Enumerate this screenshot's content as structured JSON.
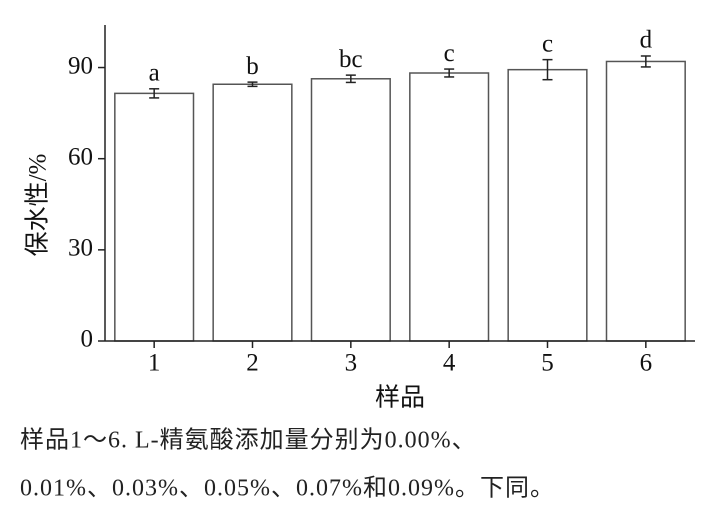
{
  "chart_data": {
    "type": "bar",
    "y_label": "保水性/%",
    "x_label": "样品",
    "categories": [
      "1",
      "2",
      "3",
      "4",
      "5",
      "6"
    ],
    "values": [
      81.5,
      84.5,
      86.3,
      88.2,
      89.3,
      92.0
    ],
    "error": [
      1.5,
      0.7,
      1.2,
      1.3,
      3.3,
      1.8
    ],
    "annotations": [
      "a",
      "b",
      "bc",
      "c",
      "c",
      "d"
    ],
    "color": "#ffffff",
    "ylim": [
      0,
      104
    ],
    "yticks": [
      0,
      30,
      60,
      90
    ]
  },
  "caption": [
    "样品1～6. L-精氨酸添加量分别为0.00%、",
    "0.01%、0.03%、0.05%、0.07%和0.09%。下同。"
  ]
}
